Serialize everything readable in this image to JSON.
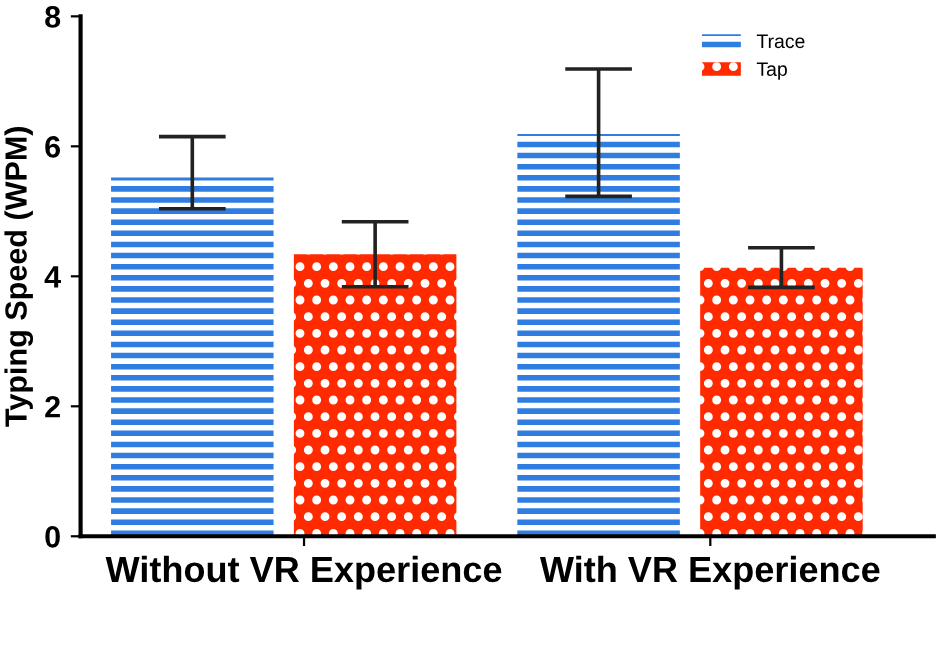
{
  "chart_data": {
    "type": "bar",
    "ylabel": "Typing Speed (WPM)",
    "categories": [
      "Without VR Experience",
      "With VR Experience"
    ],
    "series": [
      {
        "name": "Trace",
        "color": "#2f7de1",
        "values": [
          5.52,
          6.19
        ],
        "errors": [
          [
            5.04,
            6.15
          ],
          [
            5.23,
            7.19
          ]
        ]
      },
      {
        "name": "Tap",
        "color": "#ff2a00",
        "values": [
          4.34,
          4.13
        ],
        "errors": [
          [
            3.84,
            4.84
          ],
          [
            3.83,
            4.44
          ]
        ]
      }
    ],
    "ylim": [
      0,
      8
    ],
    "yticks": [
      0,
      2,
      4,
      6,
      8
    ],
    "grid": false,
    "legend": "top right"
  }
}
